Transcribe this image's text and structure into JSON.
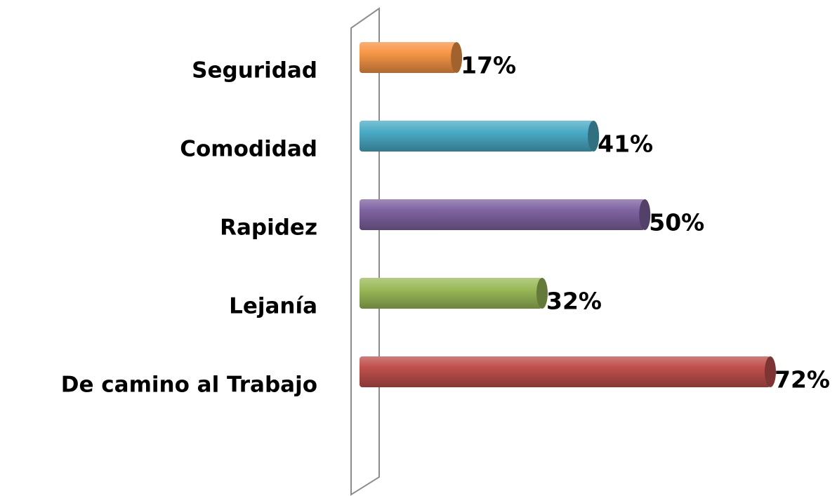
{
  "chart_data": {
    "type": "bar",
    "orientation": "horizontal",
    "categories": [
      "Seguridad",
      "Comodidad",
      "Rapidez",
      "Lejanía",
      "De camino al Trabajo"
    ],
    "values": [
      17,
      41,
      50,
      32,
      72
    ],
    "value_labels": [
      "17%",
      "41%",
      "50%",
      "32%",
      "72%"
    ],
    "colors": [
      "#f79646",
      "#4bacc6",
      "#8064a2",
      "#9bbb59",
      "#c0504d"
    ]
  }
}
